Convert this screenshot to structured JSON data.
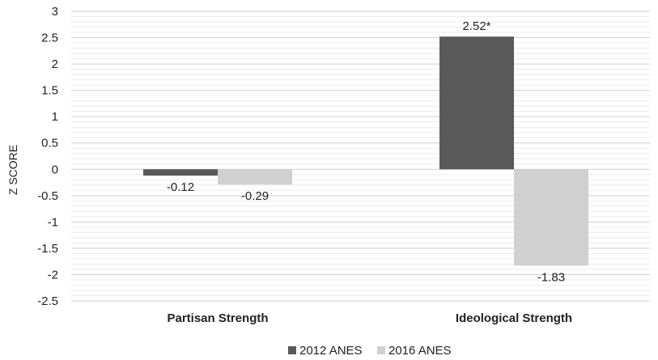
{
  "chart_data": {
    "type": "bar",
    "ylabel": "Z SCORE",
    "ylim": [
      -2.5,
      3
    ],
    "yticks": [
      "3",
      "2.5",
      "2",
      "1.5",
      "1",
      "0.5",
      "0",
      "-0.5",
      "-1",
      "-1.5",
      "-2",
      "-2.5"
    ],
    "grid": true,
    "legend_position": "bottom",
    "categories": [
      "Partisan Strength",
      "Ideological Strength"
    ],
    "series": [
      {
        "name": "2012 ANES",
        "color": "#595959",
        "values": [
          -0.12,
          2.52
        ],
        "labels": [
          "-0.12",
          "2.52*"
        ]
      },
      {
        "name": "2016 ANES",
        "color": "#d0d0d0",
        "values": [
          -0.29,
          -1.83
        ],
        "labels": [
          "-0.29",
          "-1.83"
        ]
      }
    ]
  }
}
